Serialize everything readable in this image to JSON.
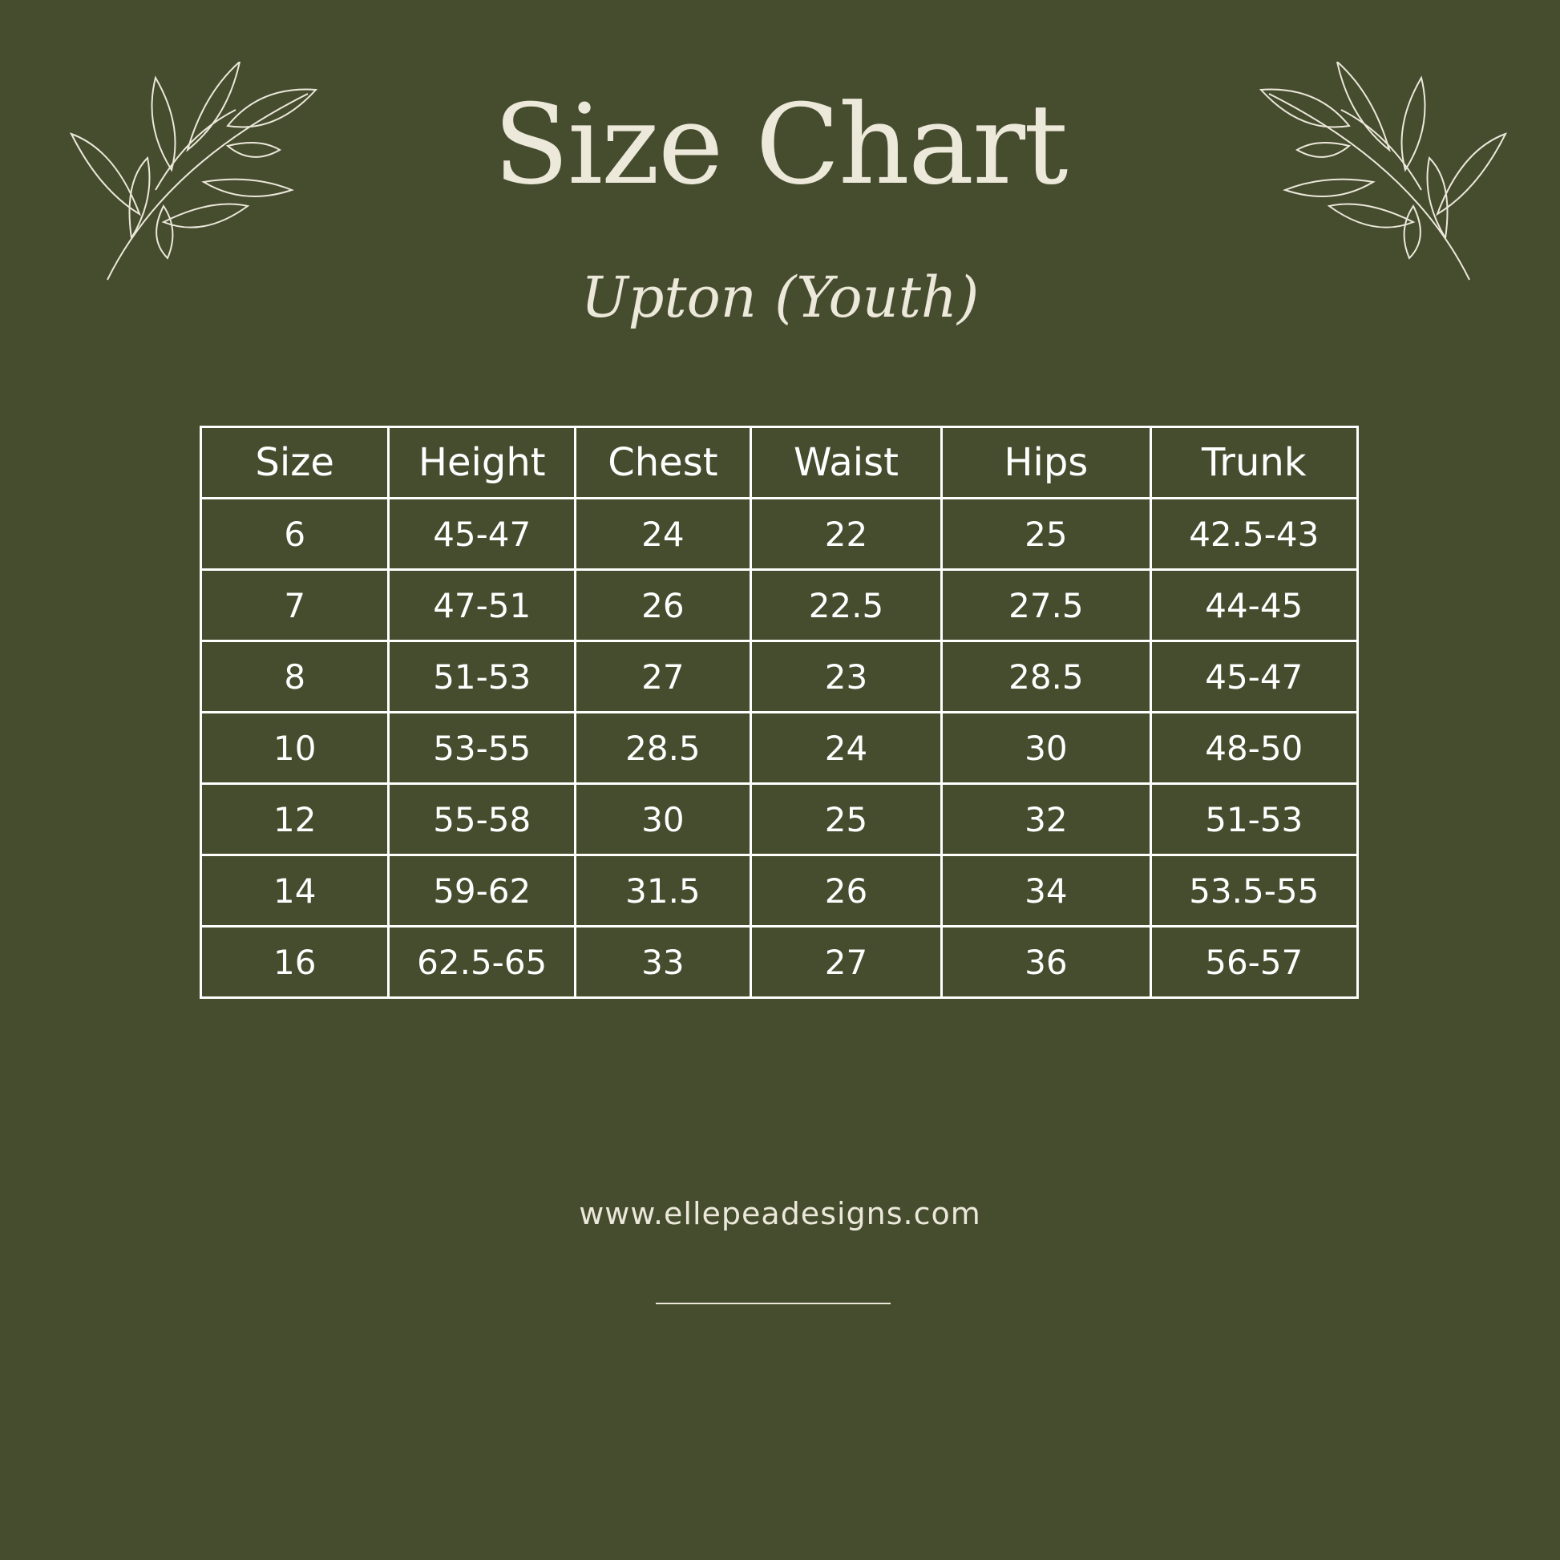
{
  "header": {
    "title": "Size Chart",
    "subtitle": "Upton (Youth)"
  },
  "table": {
    "columns": [
      "Size",
      "Height",
      "Chest",
      "Waist",
      "Hips",
      "Trunk"
    ],
    "rows": [
      [
        "6",
        "45-47",
        "24",
        "22",
        "25",
        "42.5-43"
      ],
      [
        "7",
        "47-51",
        "26",
        "22.5",
        "27.5",
        "44-45"
      ],
      [
        "8",
        "51-53",
        "27",
        "23",
        "28.5",
        "45-47"
      ],
      [
        "10",
        "53-55",
        "28.5",
        "24",
        "30",
        "48-50"
      ],
      [
        "12",
        "55-58",
        "30",
        "25",
        "32",
        "51-53"
      ],
      [
        "14",
        "59-62",
        "31.5",
        "26",
        "34",
        "53.5-55"
      ],
      [
        "16",
        "62.5-65",
        "33",
        "27",
        "36",
        "56-57"
      ]
    ]
  },
  "footer": {
    "url": "www.ellepeadesigns.com"
  },
  "colors": {
    "background": "#464d2e",
    "text": "#ece8da",
    "grid": "#ffffff"
  },
  "icons": {
    "left": "leaf-branch-icon",
    "right": "leaf-branch-icon"
  }
}
